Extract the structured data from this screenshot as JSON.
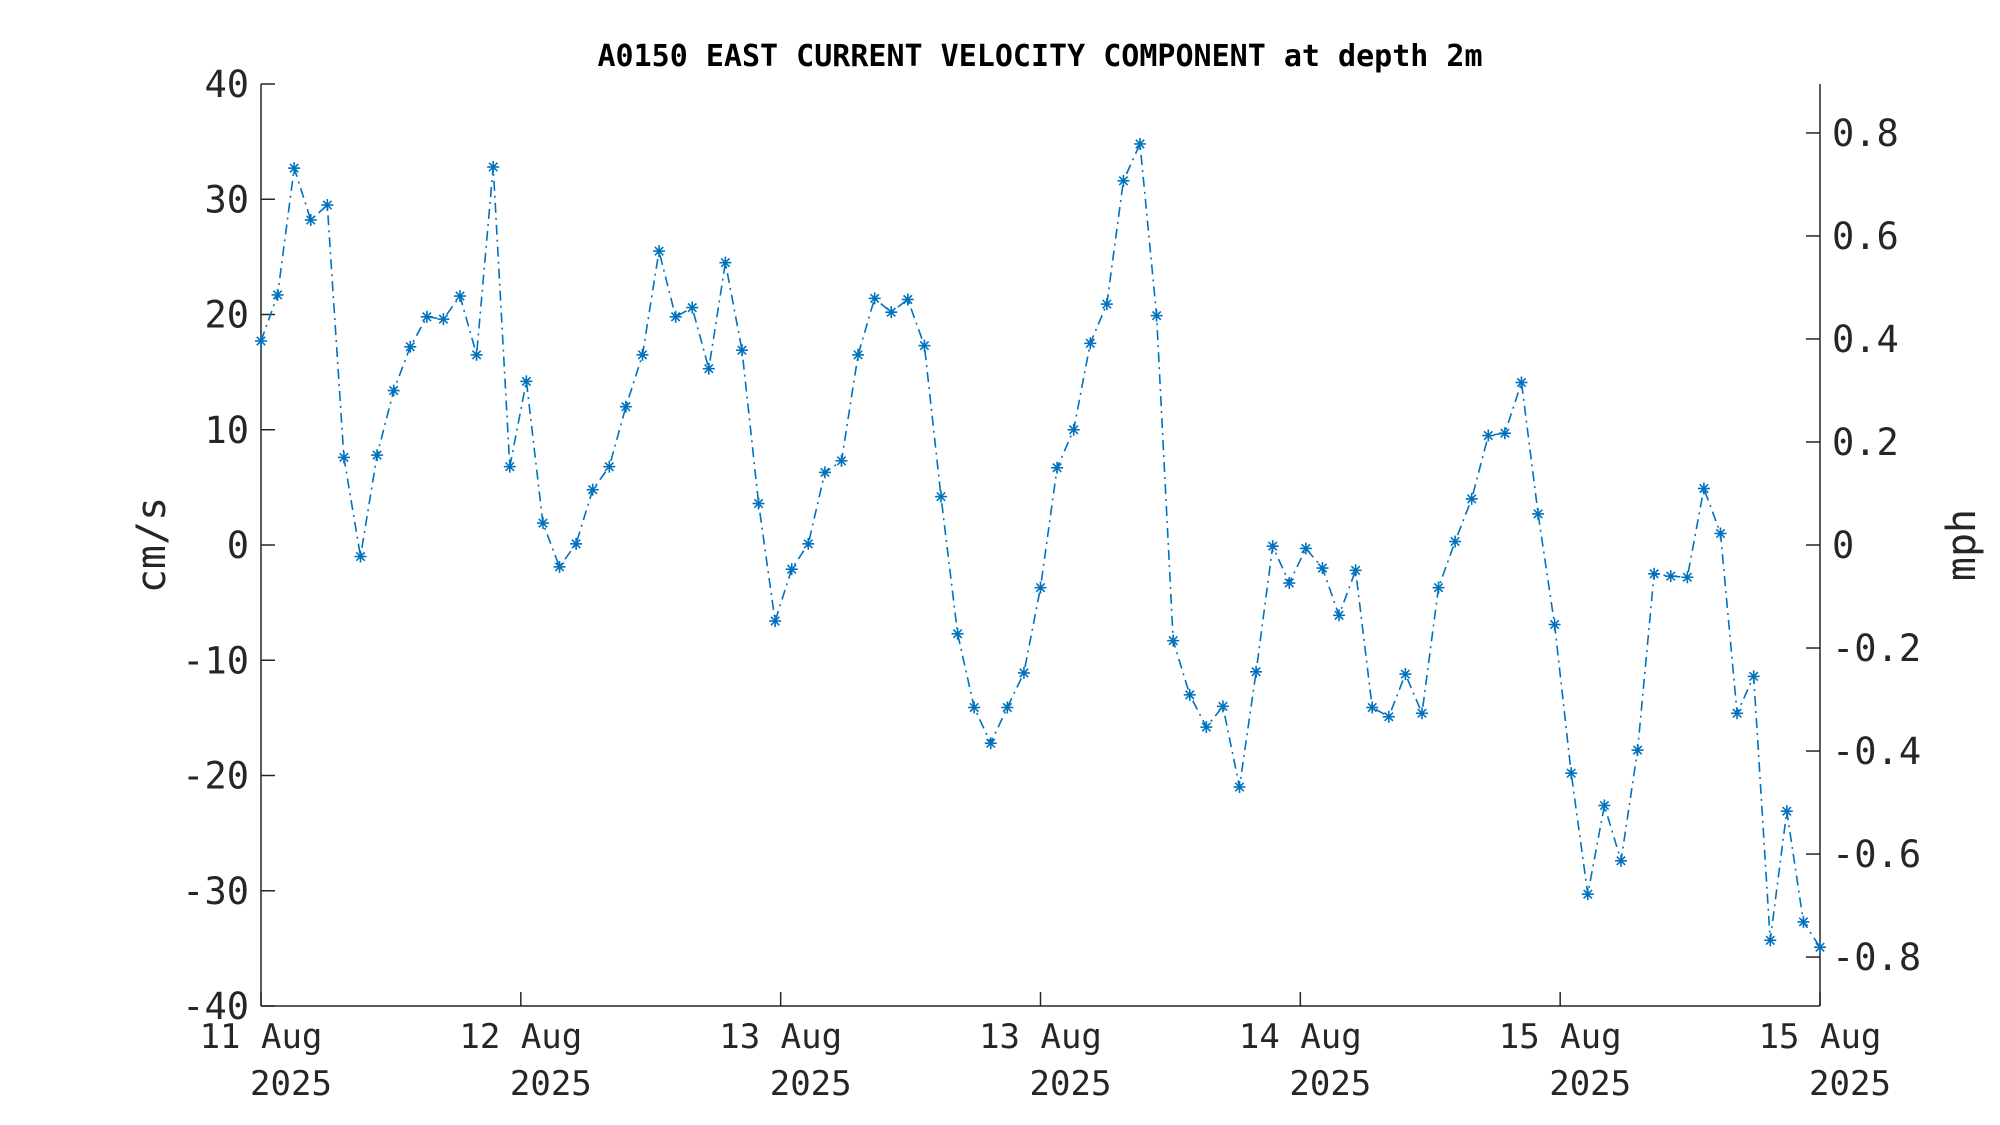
{
  "chart_data": {
    "type": "line",
    "title": "A0150 EAST CURRENT VELOCITY COMPONENT at depth 2m",
    "ylabel": "cm/s",
    "y2label": "mph",
    "ylim": [
      -40,
      40
    ],
    "y2lim": [
      -0.895,
      0.895
    ],
    "yticks": [
      -40,
      -30,
      -20,
      -10,
      0,
      10,
      20,
      30,
      40
    ],
    "y2ticks": [
      -0.8,
      -0.6,
      -0.4,
      -0.2,
      0,
      0.2,
      0.4,
      0.6,
      0.8
    ],
    "xticks": [
      {
        "line1": "11 Aug",
        "line2": "2025"
      },
      {
        "line1": "12 Aug",
        "line2": "2025"
      },
      {
        "line1": "13 Aug",
        "line2": "2025"
      },
      {
        "line1": "13 Aug",
        "line2": "2025"
      },
      {
        "line1": "14 Aug",
        "line2": "2025"
      },
      {
        "line1": "15 Aug",
        "line2": "2025"
      },
      {
        "line1": "15 Aug",
        "line2": "2025"
      }
    ],
    "grid": false,
    "legend": "none",
    "line_style": "dash-dot",
    "marker": "asterisk",
    "color": "#0072BD",
    "series": [
      {
        "values": [
          17.7,
          21.7,
          32.7,
          28.2,
          29.5,
          7.6,
          -1.0,
          7.8,
          13.4,
          17.2,
          19.8,
          19.6,
          21.6,
          16.5,
          32.8,
          6.8,
          14.2,
          1.9,
          -1.9,
          0.1,
          4.8,
          6.8,
          12.0,
          16.5,
          25.5,
          19.8,
          20.6,
          15.3,
          24.5,
          16.9,
          3.6,
          -6.6,
          -2.1,
          0.1,
          6.3,
          7.3,
          16.5,
          21.4,
          20.2,
          21.3,
          17.3,
          4.2,
          -7.7,
          -14.1,
          -17.2,
          -14.1,
          -11.1,
          -3.7,
          6.7,
          10.0,
          17.5,
          20.9,
          31.6,
          34.8,
          19.9,
          -8.3,
          -13.0,
          -15.8,
          -14.0,
          -21.0,
          -11.0,
          -0.1,
          -3.3,
          -0.3,
          -2.0,
          -6.1,
          -2.2,
          -14.1,
          -14.9,
          -11.2,
          -14.6,
          -3.7,
          0.3,
          4.0,
          9.5,
          9.7,
          14.1,
          2.7,
          -6.9,
          -19.8,
          -30.3,
          -22.6,
          -27.4,
          -17.8,
          -2.5,
          -2.7,
          -2.8,
          4.9,
          1.0,
          -14.6,
          -11.4,
          -34.3,
          -23.1,
          -32.7,
          -34.9
        ]
      }
    ]
  }
}
